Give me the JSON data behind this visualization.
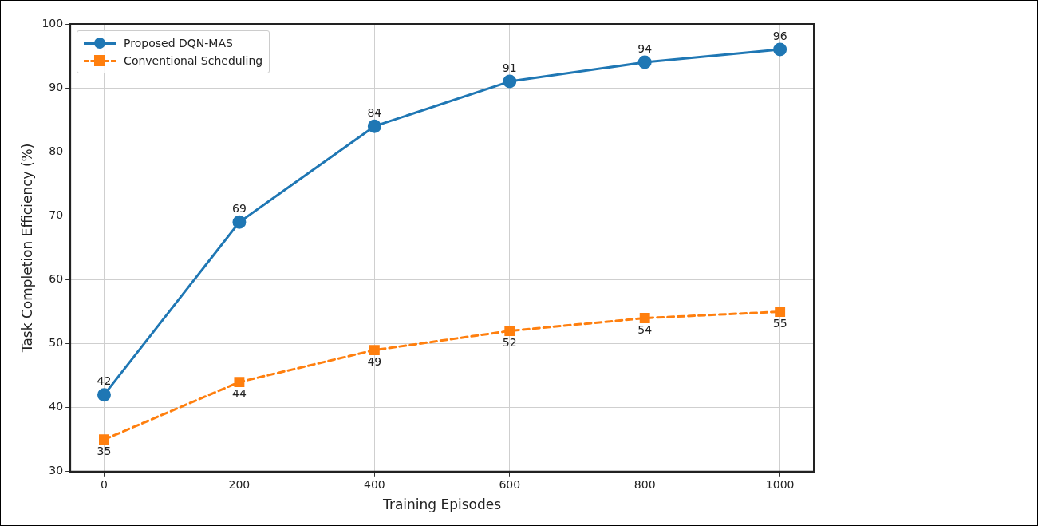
{
  "chart_data": {
    "type": "line",
    "xlabel": "Training Episodes",
    "ylabel": "Task Completion Efficiency (%)",
    "x": [
      0,
      200,
      400,
      600,
      800,
      1000
    ],
    "series": [
      {
        "name": "Proposed DQN-MAS",
        "color": "#1f77b4",
        "values": [
          42,
          69,
          84,
          91,
          94,
          96
        ],
        "marker": "circle",
        "line_style": "solid"
      },
      {
        "name": "Conventional Scheduling",
        "color": "#ff7f0e",
        "values": [
          35,
          44,
          49,
          52,
          54,
          55
        ],
        "marker": "square",
        "line_style": "dashed"
      }
    ],
    "xlim": [
      -50,
      1050
    ],
    "xticks": [
      0,
      200,
      400,
      600,
      800,
      1000
    ],
    "ylim": [
      30,
      100
    ],
    "yticks": [
      30,
      40,
      50,
      60,
      70,
      80,
      90,
      100
    ],
    "grid": true,
    "legend": "top left",
    "data_labels": true
  }
}
